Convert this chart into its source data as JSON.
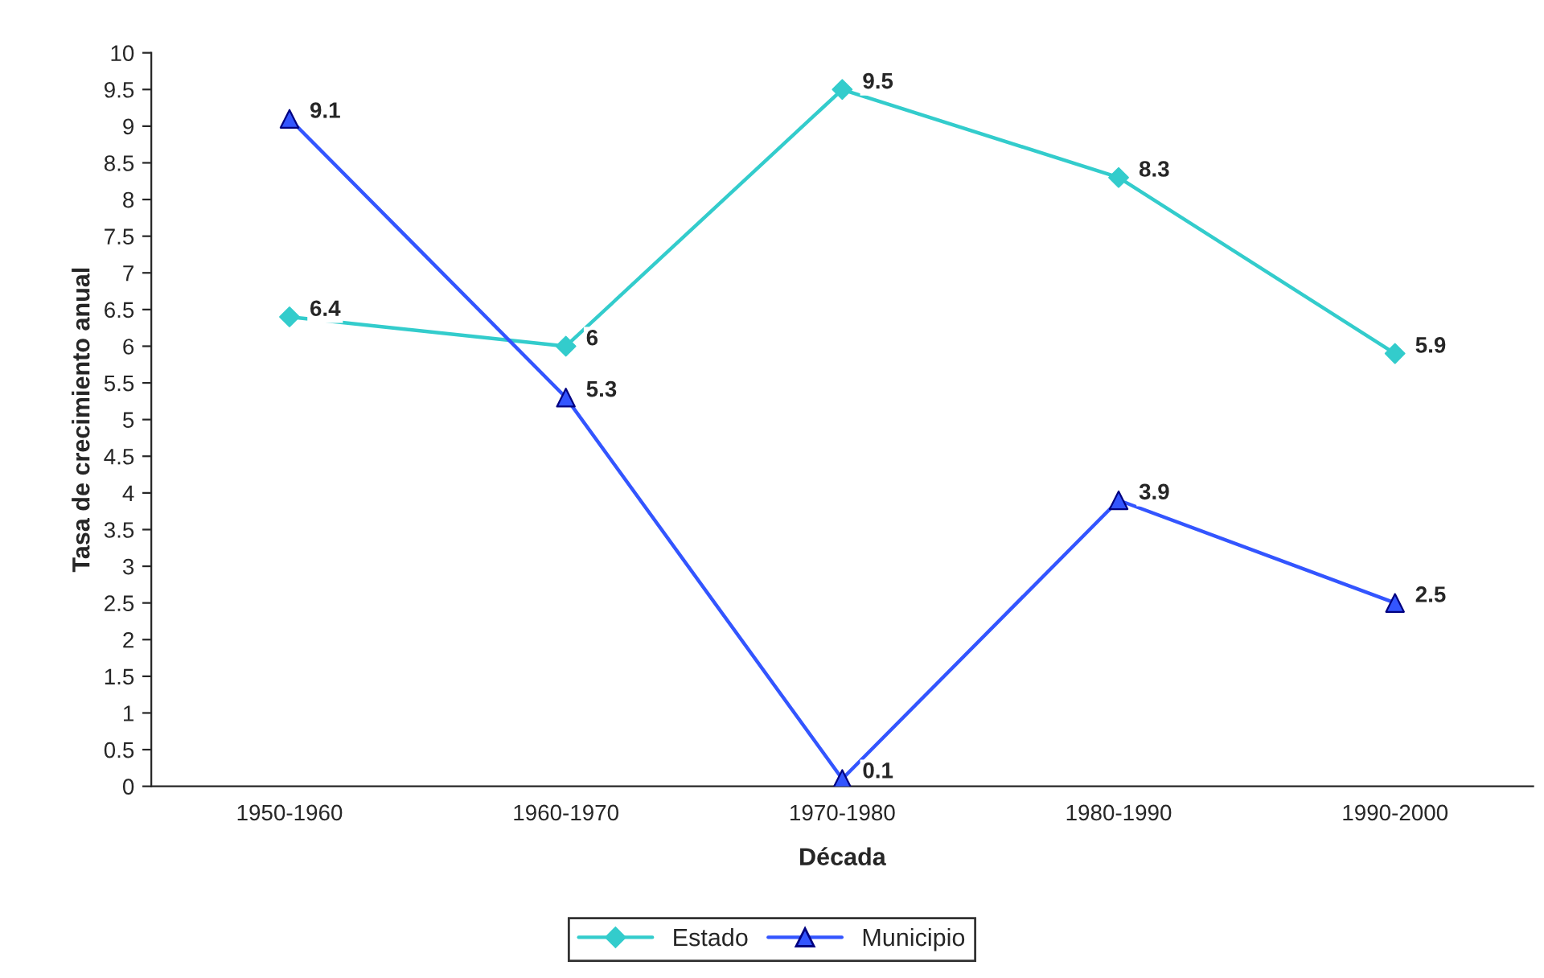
{
  "chart_data": {
    "type": "line",
    "categories": [
      "1950-1960",
      "1960-1970",
      "1970-1980",
      "1980-1990",
      "1990-2000"
    ],
    "xlabel": "Década",
    "ylabel": "Tasa de crecimiento anual",
    "series": [
      {
        "name": "Estado",
        "color": "#33cccc",
        "marker": "diamond",
        "values": [
          6.4,
          6,
          9.5,
          8.3,
          5.9
        ]
      },
      {
        "name": "Municipio",
        "color": "#3355ff",
        "marker": "triangle",
        "values": [
          9.1,
          5.3,
          0.1,
          3.9,
          2.5
        ]
      }
    ],
    "ylim": [
      0,
      10
    ],
    "yticks": [
      0,
      0.5,
      1,
      1.5,
      2,
      2.5,
      3,
      3.5,
      4,
      4.5,
      5,
      5.5,
      6,
      6.5,
      7,
      7.5,
      8,
      8.5,
      9,
      9.5,
      10
    ],
    "data_labels": true,
    "grid": false,
    "legend": "bottom",
    "line_style": "solid"
  }
}
